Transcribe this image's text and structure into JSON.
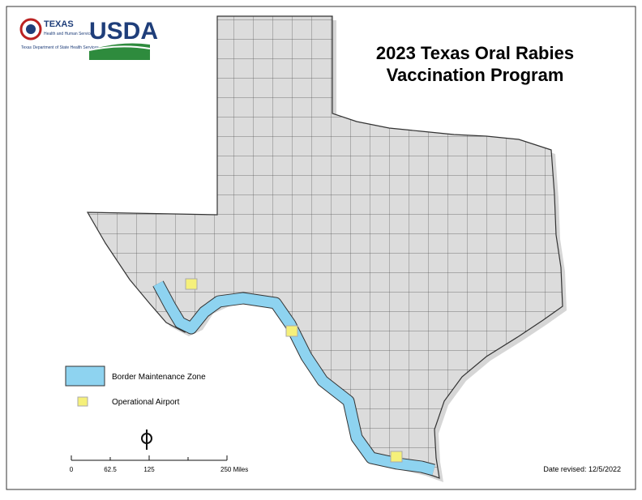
{
  "logos": {
    "texas_name": "TEXAS",
    "texas_sub": "Health and Human Services",
    "texas_dept": "Texas Department of State Health Services",
    "usda": "USDA"
  },
  "title": [
    "2023 Texas Oral Rabies",
    "Vaccination Program"
  ],
  "legend": {
    "zone": "Border Maintenance Zone",
    "airport": "Operational Airport"
  },
  "scale": [
    "0",
    "62.5",
    "125",
    "250 Miles"
  ],
  "date_revised": "Date revised: 12/5/2022"
}
